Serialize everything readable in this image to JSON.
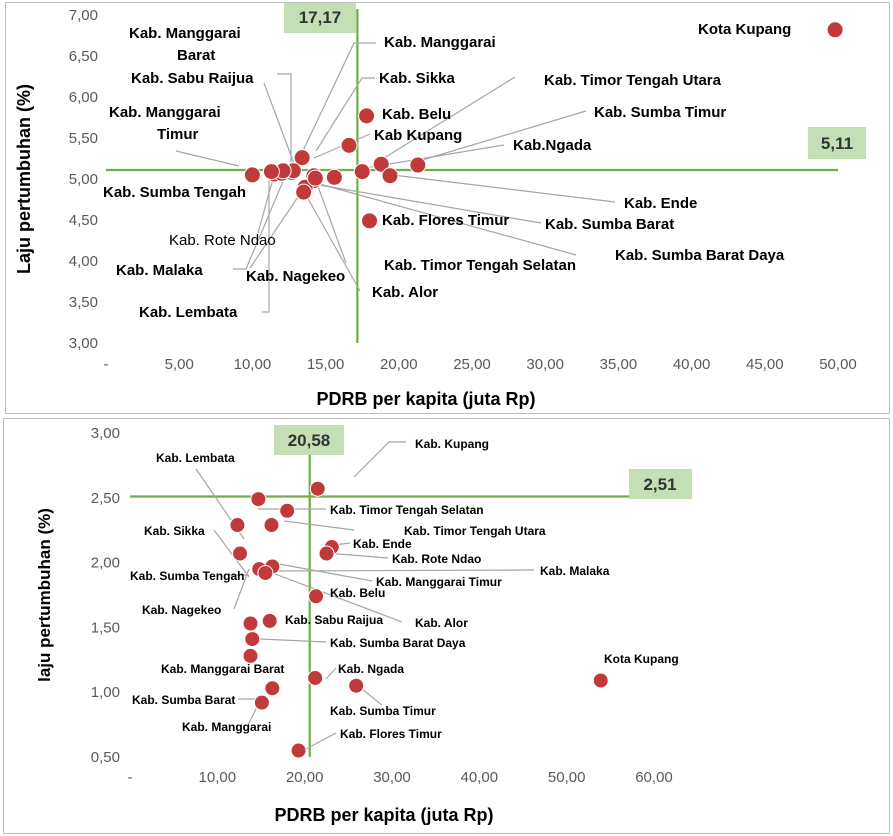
{
  "chart_data": [
    {
      "type": "scatter",
      "title": "",
      "xlabel": "PDRB per kapita (juta Rp)",
      "ylabel": "Laju pertumbuhan (%)",
      "xlim": [
        0,
        50
      ],
      "ylim": [
        3,
        7
      ],
      "x_ticks": [
        "-",
        "5,00",
        "10,00",
        "15,00",
        "20,00",
        "25,00",
        "30,00",
        "35,00",
        "40,00",
        "45,00",
        "50,00"
      ],
      "y_ticks": [
        "3,00",
        "3,50",
        "4,00",
        "4,50",
        "5,00",
        "5,50",
        "6,00",
        "6,50",
        "7,00"
      ],
      "threshold_x": {
        "value": 17.17,
        "label": "17,17"
      },
      "threshold_y": {
        "value": 5.11,
        "label": "5,11"
      },
      "grid": false,
      "points": [
        {
          "name": "Kota Kupang",
          "x": 49.8,
          "y": 6.82
        },
        {
          "name": "Kab. Manggarai Barat",
          "x": 12.7,
          "y": 5.08
        },
        {
          "name": "Kab. Manggarai",
          "x": 13.4,
          "y": 5.26
        },
        {
          "name": "Kab. Sabu Raijua",
          "x": 12.8,
          "y": 5.1
        },
        {
          "name": "Kab. Sikka",
          "x": 16.6,
          "y": 5.41
        },
        {
          "name": "Kab. Timor Tengah Utara",
          "x": 18.8,
          "y": 5.18
        },
        {
          "name": "Kab. Belu",
          "x": 17.8,
          "y": 5.77
        },
        {
          "name": "Kab. Sumba Timur",
          "x": 21.3,
          "y": 5.17
        },
        {
          "name": "Kab. Manggarai Timur",
          "x": 11.5,
          "y": 5.06
        },
        {
          "name": "Kab Kupang",
          "x": 15.6,
          "y": 5.02
        },
        {
          "name": "Kab.Ngada",
          "x": 17.5,
          "y": 5.09
        },
        {
          "name": "Kab. Sumba Tengah",
          "x": 10.0,
          "y": 5.05
        },
        {
          "name": "Kab. Ende",
          "x": 19.4,
          "y": 5.04
        },
        {
          "name": "Kab. Flores Timur",
          "x": 18.0,
          "y": 4.49
        },
        {
          "name": "Kab. Sumba Barat",
          "x": 14.2,
          "y": 4.98
        },
        {
          "name": "Kab. Rote Ndao",
          "x": 12.0,
          "y": 5.07
        },
        {
          "name": "Kab. Sumba Barat Daya",
          "x": 14.2,
          "y": 5.04
        },
        {
          "name": "Kab. Malaka",
          "x": 12.1,
          "y": 5.1
        },
        {
          "name": "Kab. Nagekeo",
          "x": 13.6,
          "y": 4.9
        },
        {
          "name": "Kab. Timor Tengah Selatan",
          "x": 14.3,
          "y": 5.01
        },
        {
          "name": "Kab. Alor",
          "x": 13.5,
          "y": 4.84
        },
        {
          "name": "Kab. Lembata",
          "x": 11.3,
          "y": 5.09
        }
      ]
    },
    {
      "type": "scatter",
      "title": "",
      "xlabel": "PDRB per kapita (juta Rp)",
      "ylabel": "laju pertumbuhan (%)",
      "xlim": [
        0,
        60
      ],
      "ylim": [
        0.5,
        3
      ],
      "x_ticks": [
        "-",
        "10,00",
        "20,00",
        "30,00",
        "40,00",
        "50,00",
        "60,00"
      ],
      "y_ticks": [
        "0,50",
        "1,00",
        "1,50",
        "2,00",
        "2,50",
        "3,00"
      ],
      "threshold_x": {
        "value": 20.58,
        "label": "20,58"
      },
      "threshold_y": {
        "value": 2.51,
        "label": "2,51"
      },
      "grid": false,
      "points": [
        {
          "name": "Kab. Kupang",
          "x": 21.5,
          "y": 2.57
        },
        {
          "name": "Kab. Lembata",
          "x": 14.7,
          "y": 2.49
        },
        {
          "name": "Kab. Timor Tengah Selatan",
          "x": 18.0,
          "y": 2.4
        },
        {
          "name": "Kab. Timor Tengah Utara",
          "x": 16.2,
          "y": 2.29
        },
        {
          "name": "Kab. Sikka",
          "x": 12.3,
          "y": 2.29
        },
        {
          "name": "Kab. Ende",
          "x": 23.1,
          "y": 2.12
        },
        {
          "name": "Kab. Rote Ndao",
          "x": 22.5,
          "y": 2.07
        },
        {
          "name": "Kab. Sumba Tengah",
          "x": 12.6,
          "y": 2.07
        },
        {
          "name": "Kab. Malaka",
          "x": 14.8,
          "y": 1.95
        },
        {
          "name": "Kab. Manggarai Timur",
          "x": 16.3,
          "y": 1.97
        },
        {
          "name": "Kab. Alor",
          "x": 15.5,
          "y": 1.92
        },
        {
          "name": "Kab. Belu",
          "x": 21.3,
          "y": 1.74
        },
        {
          "name": "Kab. Nagekeo",
          "x": 13.8,
          "y": 1.53
        },
        {
          "name": "Kab. Sabu Raijua",
          "x": 16.0,
          "y": 1.55
        },
        {
          "name": "Kab. Sumba Barat Daya",
          "x": 14.0,
          "y": 1.41
        },
        {
          "name": "Kab. Manggarai Barat",
          "x": 13.8,
          "y": 1.28
        },
        {
          "name": "Kab. Ngada",
          "x": 21.2,
          "y": 1.11
        },
        {
          "name": "Kota Kupang",
          "x": 53.9,
          "y": 1.09
        },
        {
          "name": "Kab. Sumba Timur",
          "x": 25.9,
          "y": 1.05
        },
        {
          "name": "Kab. Sumba Barat",
          "x": 16.3,
          "y": 1.03
        },
        {
          "name": "Kab. Manggarai",
          "x": 15.1,
          "y": 0.92
        },
        {
          "name": "Kab. Flores Timur",
          "x": 19.3,
          "y": 0.55
        }
      ]
    }
  ]
}
